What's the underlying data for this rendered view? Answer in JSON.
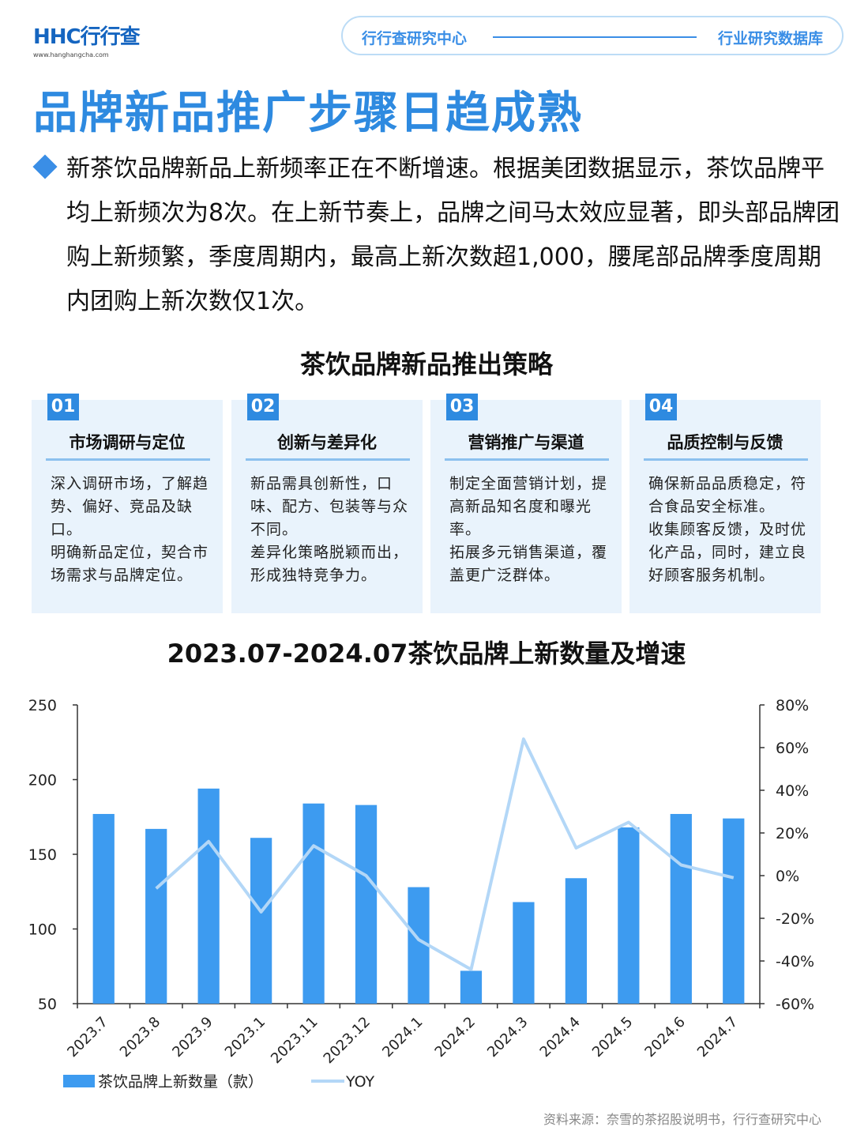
{
  "header": {
    "logo_text": "HHC行行查",
    "logo_url": "www.hanghangcha.com",
    "pill_left": "行行查研究中心",
    "pill_right": "行业研究数据库"
  },
  "page_title": "品牌新品推广步骤日趋成熟",
  "intro": "新茶饮品牌新品上新频率正在不断增速。根据美团数据显示，茶饮品牌平均上新频次为8次。在上新节奏上，品牌之间马太效应显著，即头部品牌团购上新频繁，季度周期内，最高上新次数超1,000，腰尾部品牌季度周期内团购上新次数仅1次。",
  "strategy": {
    "title": "茶饮品牌新品推出策略",
    "cards": [
      {
        "num": "01",
        "title": "市场调研与定位",
        "body": "深入调研市场，了解趋势、偏好、竞品及缺口。\n明确新品定位，契合市场需求与品牌定位。"
      },
      {
        "num": "02",
        "title": "创新与差异化",
        "body": "新品需具创新性，口味、配方、包装等与众不同。\n差异化策略脱颖而出，形成独特竞争力。"
      },
      {
        "num": "03",
        "title": "营销推广与渠道",
        "body": "制定全面营销计划，提高新品知名度和曝光率。\n拓展多元销售渠道，覆盖更广泛群体。"
      },
      {
        "num": "04",
        "title": "品质控制与反馈",
        "body": "确保新品品质稳定，符合食品安全标准。\n收集顾客反馈，及时优化产品，同时，建立良好顾客服务机制。"
      }
    ]
  },
  "chart_title": "2023.07-2024.07茶饮品牌上新数量及增速",
  "chart_data": {
    "type": "bar",
    "title": "2023.07-2024.07茶饮品牌上新数量及增速",
    "categories": [
      "2023.7",
      "2023.8",
      "2023.9",
      "2023.1",
      "2023.11",
      "2023.12",
      "2024.1",
      "2024.2",
      "2024.3",
      "2024.4",
      "2024.5",
      "2024.6",
      "2024.7"
    ],
    "series": [
      {
        "name": "茶饮品牌上新数量（款）",
        "type": "bar",
        "axis": "left",
        "color": "#3d9bf0",
        "values": [
          177,
          167,
          194,
          161,
          184,
          183,
          128,
          72,
          118,
          134,
          168,
          177,
          174
        ]
      },
      {
        "name": "YOY",
        "type": "line",
        "axis": "right",
        "color": "#b3d7f7",
        "values": [
          null,
          -6,
          16,
          -17,
          14,
          0,
          -30,
          -44,
          64,
          13,
          25,
          5,
          -1
        ]
      }
    ],
    "y_left": {
      "min": 50,
      "max": 250,
      "ticks": [
        "50",
        "100",
        "150",
        "200",
        "250"
      ]
    },
    "y_right": {
      "min": -60,
      "max": 80,
      "ticks": [
        "-60%",
        "-40%",
        "-20%",
        "0%",
        "20%",
        "40%",
        "60%",
        "80%"
      ]
    },
    "grid": false,
    "legend_position": "bottom-left"
  },
  "source": "资料来源：奈雪的茶招股说明书，行行查研究中心"
}
